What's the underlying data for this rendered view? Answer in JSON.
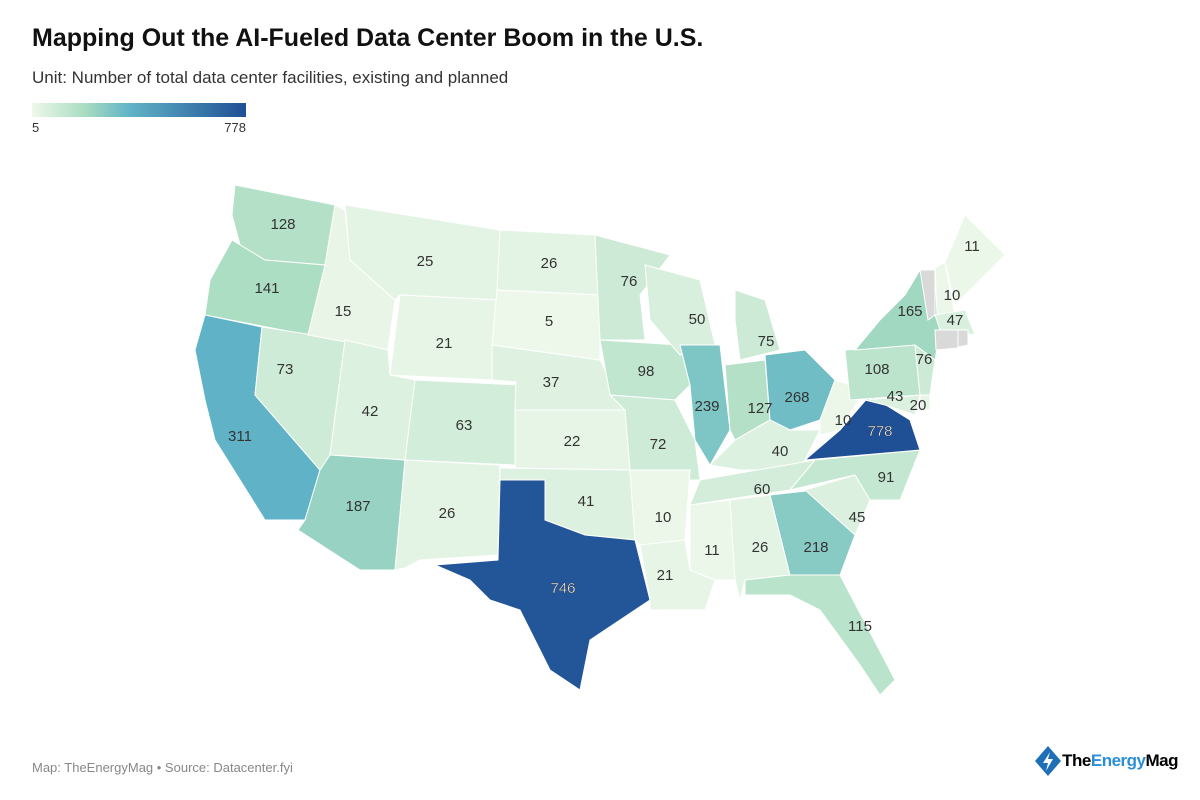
{
  "title": "Mapping Out the AI-Fueled Data Center Boom in the U.S.",
  "subtitle": "Unit: Number of total data center facilities, existing and planned",
  "legend": {
    "min": "5",
    "max": "778",
    "colors": [
      "#eef8ea",
      "#a8dcc0",
      "#62b5c8",
      "#1f4f95"
    ]
  },
  "footer": "Map: TheEnergyMag • Source: Datacenter.fyi",
  "logo": {
    "part1": "The",
    "part2": "Energy",
    "part3": "Mag"
  },
  "no_data_color": "#d9d9d9",
  "chart_data": {
    "type": "choropleth",
    "region": "United States",
    "unit": "Number of total data center facilities, existing and planned",
    "range": [
      5,
      778
    ],
    "values": {
      "WA": 128,
      "OR": 141,
      "CA": 311,
      "NV": 73,
      "ID": 15,
      "MT": 25,
      "WY": 21,
      "UT": 42,
      "AZ": 187,
      "CO": 63,
      "NM": 26,
      "ND": 26,
      "SD": 5,
      "NE": 37,
      "KS": 22,
      "OK": 41,
      "TX": 746,
      "MN": 76,
      "IA": 98,
      "MO": 72,
      "AR": 10,
      "LA": 21,
      "WI": 50,
      "IL": 239,
      "MI": 75,
      "IN": 127,
      "OH": 268,
      "KY": 40,
      "TN": 60,
      "MS": 11,
      "AL": 26,
      "GA": 218,
      "FL": 115,
      "SC": 45,
      "NC": 91,
      "VA": 778,
      "WV": 10,
      "PA": 108,
      "NY": 165,
      "NJ": 76,
      "MD": 43,
      "DE": 20,
      "NH": 10,
      "ME": 11,
      "MA": 47,
      "VT": null,
      "CT": null,
      "RI": null
    }
  }
}
